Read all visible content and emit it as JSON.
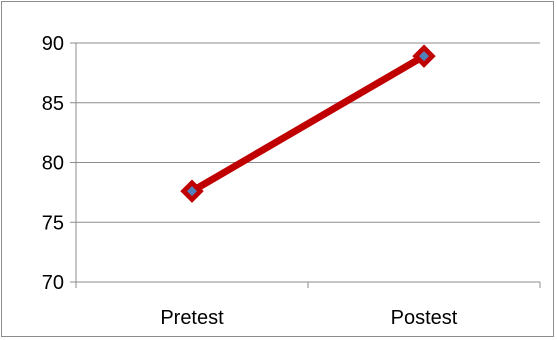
{
  "chart_data": {
    "type": "line",
    "categories": [
      "Pretest",
      "Postest"
    ],
    "series": [
      {
        "values": [
          77.6,
          88.9
        ],
        "line_color": "#c00000",
        "marker_color": "#4f81bd"
      }
    ],
    "ylim": [
      70,
      90
    ],
    "yticks": [
      70,
      75,
      80,
      85,
      90
    ],
    "grid": true,
    "legend": "none",
    "title": "",
    "xlabel": "",
    "ylabel": ""
  }
}
